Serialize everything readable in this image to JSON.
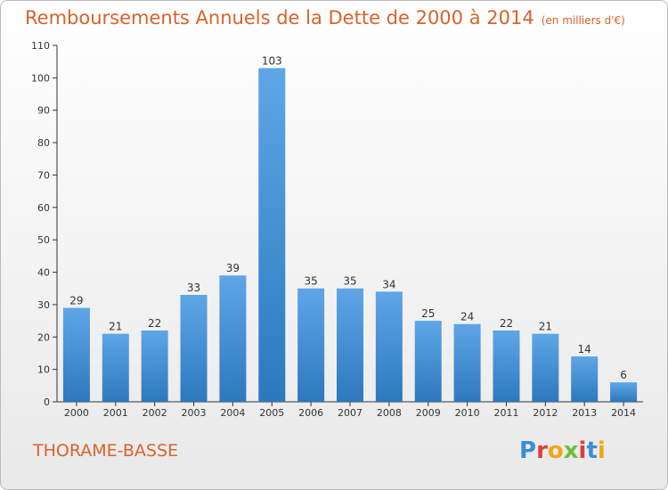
{
  "header": {
    "title": "Remboursements Annuels de la Dette de 2000 à 2014",
    "unit": "(en milliers d'€)"
  },
  "footer": {
    "commune": "THORAME-BASSE",
    "brand": "Proxiti"
  },
  "colors": {
    "accent": "#d9622b",
    "bar_light": "#5ea6e6",
    "bar_dark": "#2d78bf"
  },
  "chart_data": {
    "type": "bar",
    "title": "Remboursements Annuels de la Dette de 2000 à 2014",
    "categories": [
      "2000",
      "2001",
      "2002",
      "2003",
      "2004",
      "2005",
      "2006",
      "2007",
      "2008",
      "2009",
      "2010",
      "2011",
      "2012",
      "2013",
      "2014"
    ],
    "values": [
      29,
      21,
      22,
      33,
      39,
      103,
      35,
      35,
      34,
      25,
      24,
      22,
      21,
      14,
      6
    ],
    "ylim": [
      0,
      110
    ],
    "yticks": [
      0,
      10,
      20,
      30,
      40,
      50,
      60,
      70,
      80,
      90,
      100,
      110
    ],
    "grid": false,
    "data_labels": true
  }
}
